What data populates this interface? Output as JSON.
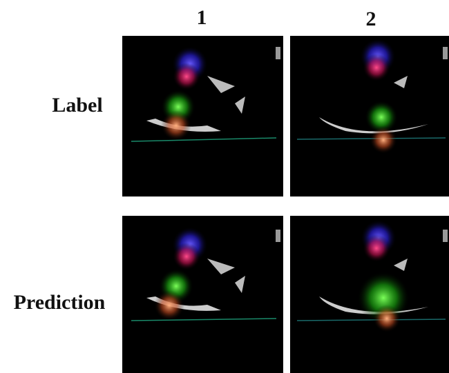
{
  "columns": [
    "1",
    "2"
  ],
  "rows": [
    "Label",
    "Prediction"
  ]
}
